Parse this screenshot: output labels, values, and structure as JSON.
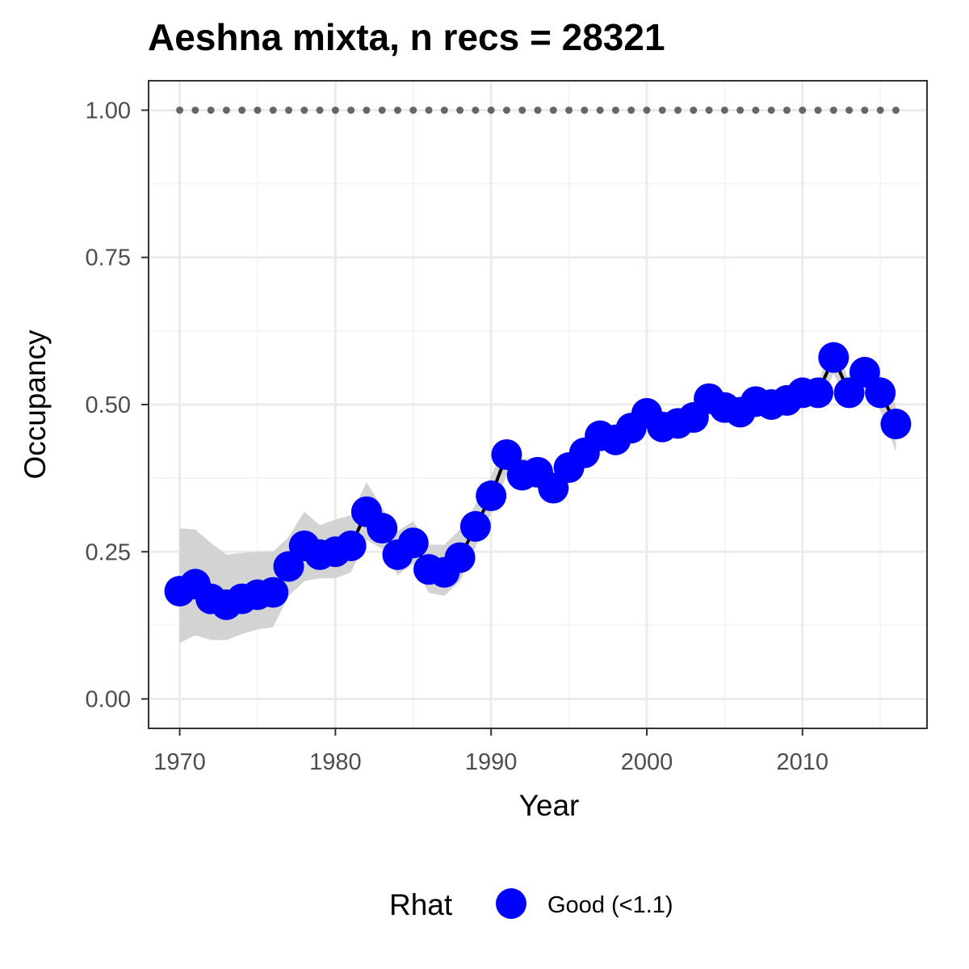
{
  "chart_data": {
    "type": "line",
    "title": "Aeshna mixta, n recs = 28321",
    "xlabel": "Year",
    "ylabel": "Occupancy",
    "xlim": [
      1968,
      2018
    ],
    "ylim": [
      -0.05,
      1.05
    ],
    "x_ticks": [
      1970,
      1980,
      1990,
      2000,
      2010
    ],
    "x_tick_labels": [
      "1970",
      "1980",
      "1990",
      "2000",
      "2010"
    ],
    "y_ticks": [
      0,
      0.25,
      0.5,
      0.75,
      1.0
    ],
    "y_tick_labels": [
      "0.00",
      "0.25",
      "0.50",
      "0.75",
      "1.00"
    ],
    "grid": true,
    "x": [
      1970,
      1971,
      1972,
      1973,
      1974,
      1975,
      1976,
      1977,
      1978,
      1979,
      1980,
      1981,
      1982,
      1983,
      1984,
      1985,
      1986,
      1987,
      1988,
      1989,
      1990,
      1991,
      1992,
      1993,
      1994,
      1995,
      1996,
      1997,
      1998,
      1999,
      2000,
      2001,
      2002,
      2003,
      2004,
      2005,
      2006,
      2007,
      2008,
      2009,
      2010,
      2011,
      2012,
      2013,
      2014,
      2015,
      2016
    ],
    "series": [
      {
        "name": "Good (<1.1)",
        "color": "#0000ff",
        "values": [
          0.183,
          0.195,
          0.17,
          0.16,
          0.17,
          0.177,
          0.181,
          0.225,
          0.26,
          0.245,
          0.25,
          0.26,
          0.318,
          0.29,
          0.245,
          0.265,
          0.22,
          0.215,
          0.24,
          0.293,
          0.345,
          0.415,
          0.38,
          0.385,
          0.358,
          0.393,
          0.418,
          0.447,
          0.44,
          0.46,
          0.485,
          0.462,
          0.468,
          0.478,
          0.51,
          0.495,
          0.487,
          0.505,
          0.5,
          0.507,
          0.52,
          0.52,
          0.58,
          0.52,
          0.555,
          0.52,
          0.467
        ],
        "lower": [
          0.095,
          0.108,
          0.1,
          0.1,
          0.11,
          0.118,
          0.122,
          0.175,
          0.2,
          0.205,
          0.205,
          0.215,
          0.27,
          0.255,
          0.21,
          0.23,
          0.18,
          0.175,
          0.2,
          0.258,
          0.315,
          0.38,
          0.355,
          0.36,
          0.34,
          0.37,
          0.395,
          0.425,
          0.42,
          0.44,
          0.462,
          0.445,
          0.45,
          0.46,
          0.488,
          0.478,
          0.47,
          0.488,
          0.482,
          0.49,
          0.503,
          0.502,
          0.552,
          0.5,
          0.528,
          0.49,
          0.42
        ],
        "upper": [
          0.29,
          0.288,
          0.265,
          0.245,
          0.248,
          0.25,
          0.25,
          0.275,
          0.318,
          0.295,
          0.305,
          0.312,
          0.368,
          0.325,
          0.285,
          0.302,
          0.262,
          0.262,
          0.288,
          0.33,
          0.378,
          0.44,
          0.408,
          0.41,
          0.38,
          0.415,
          0.44,
          0.468,
          0.46,
          0.482,
          0.508,
          0.48,
          0.487,
          0.497,
          0.532,
          0.515,
          0.505,
          0.522,
          0.52,
          0.527,
          0.54,
          0.538,
          0.605,
          0.54,
          0.58,
          0.55,
          0.5
        ]
      }
    ],
    "reference_line": {
      "value": 1.0,
      "style": "dotted",
      "color": "#666666"
    },
    "band_color": "#d3d3d3",
    "legend": {
      "title": "Rhat",
      "labels": [
        "Good (<1.1)"
      ],
      "placement": "bottom"
    }
  }
}
